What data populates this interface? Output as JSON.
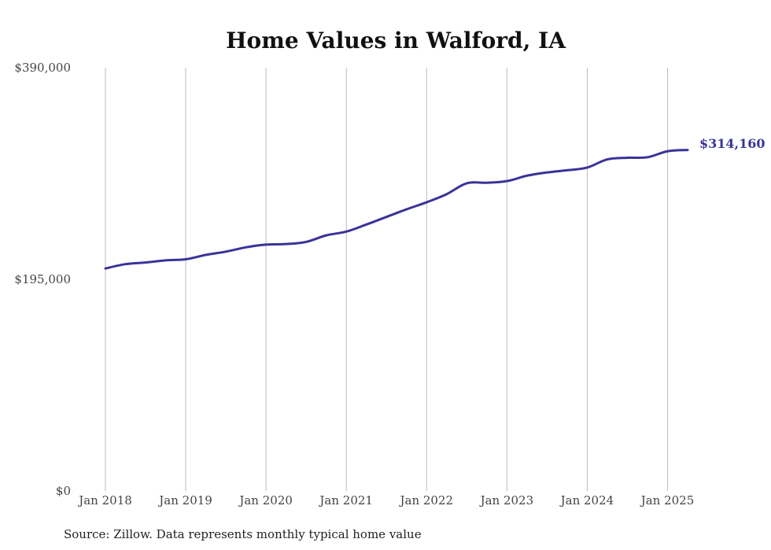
{
  "chart_data": {
    "type": "line",
    "title": "Home Values in Walford, IA",
    "xlabel": "",
    "ylabel": "",
    "x_ticks": [
      "Jan 2018",
      "Jan 2019",
      "Jan 2020",
      "Jan 2021",
      "Jan 2022",
      "Jan 2023",
      "Jan 2024",
      "Jan 2025"
    ],
    "y_ticks": [
      "$0",
      "$195,000",
      "$390,000"
    ],
    "ylim": [
      0,
      390000
    ],
    "xlim": [
      "2018-01",
      "2025-04"
    ],
    "grid": "vertical",
    "line_color": "#3a3399",
    "end_label": "$314,160",
    "series": [
      {
        "points": [
          [
            "2018-01",
            205000
          ],
          [
            "2018-04",
            209000
          ],
          [
            "2018-07",
            210500
          ],
          [
            "2018-10",
            212500
          ],
          [
            "2019-01",
            213500
          ],
          [
            "2019-04",
            217500
          ],
          [
            "2019-07",
            220500
          ],
          [
            "2019-10",
            224500
          ],
          [
            "2020-01",
            227000
          ],
          [
            "2020-04",
            227500
          ],
          [
            "2020-07",
            229500
          ],
          [
            "2020-10",
            235500
          ],
          [
            "2021-01",
            239000
          ],
          [
            "2021-04",
            245500
          ],
          [
            "2021-07",
            252500
          ],
          [
            "2021-10",
            259500
          ],
          [
            "2022-01",
            266000
          ],
          [
            "2022-04",
            273500
          ],
          [
            "2022-07",
            283500
          ],
          [
            "2022-10",
            284000
          ],
          [
            "2023-01",
            285500
          ],
          [
            "2023-04",
            290500
          ],
          [
            "2023-07",
            293500
          ],
          [
            "2023-10",
            295500
          ],
          [
            "2024-01",
            298000
          ],
          [
            "2024-04",
            305500
          ],
          [
            "2024-07",
            307000
          ],
          [
            "2024-10",
            307500
          ],
          [
            "2025-01",
            313000
          ],
          [
            "2025-04",
            314160
          ]
        ]
      }
    ]
  },
  "source_note": "Source: Zillow. Data represents monthly typical home value"
}
